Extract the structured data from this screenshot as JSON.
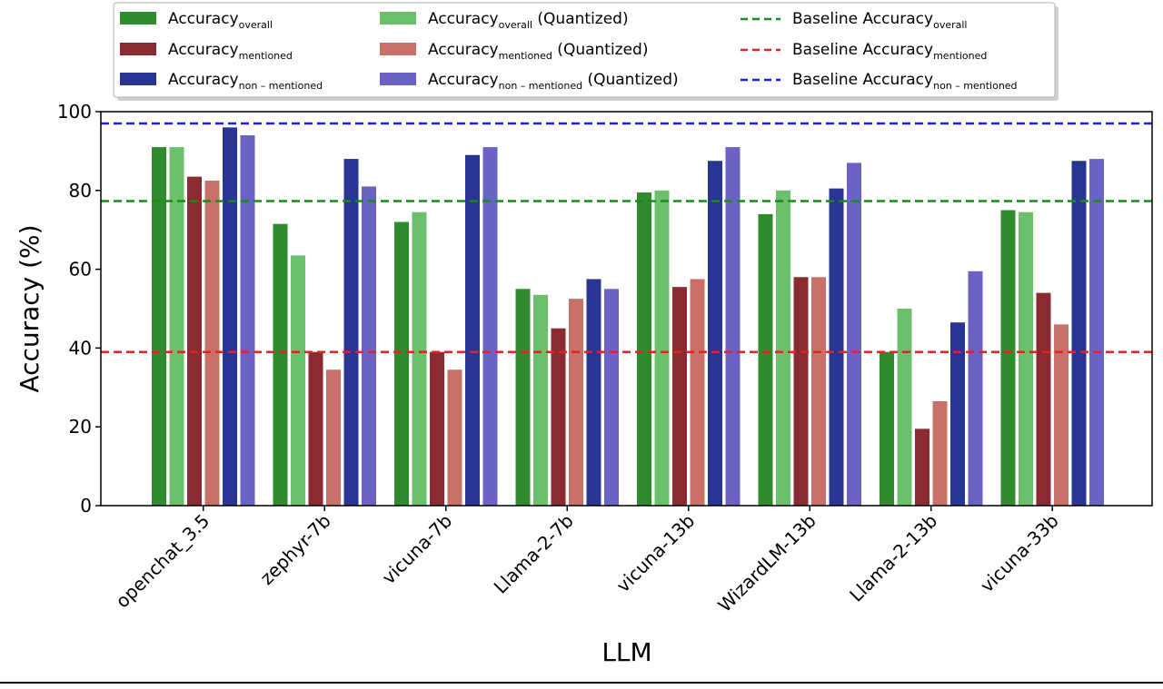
{
  "chart_data": {
    "type": "bar",
    "xlabel": "LLM",
    "ylabel": "Accuracy (%)",
    "ylim": [
      0,
      100
    ],
    "yticks": [
      0,
      20,
      40,
      60,
      80,
      100
    ],
    "grid": false,
    "legend_placement": "top",
    "categories": [
      "openchat_3.5",
      "zephyr-7b",
      "vicuna-7b",
      "Llama-2-7b",
      "vicuna-13b",
      "WizardLM-13b",
      "Llama-2-13b",
      "vicuna-33b"
    ],
    "series": [
      {
        "name": "Accuracy",
        "subscript": "overall",
        "suffix": "",
        "color": "#2e8b2e",
        "values": [
          91.0,
          71.5,
          72.0,
          55.0,
          79.5,
          74.0,
          39.0,
          75.0
        ]
      },
      {
        "name": "Accuracy",
        "subscript": "overall",
        "suffix": " (Quantized)",
        "color": "#6cc06c",
        "values": [
          91.0,
          63.5,
          74.5,
          53.5,
          80.0,
          80.0,
          50.0,
          74.5
        ]
      },
      {
        "name": "Accuracy",
        "subscript": "mentioned",
        "suffix": "",
        "color": "#8b2a30",
        "values": [
          83.5,
          39.0,
          39.0,
          45.0,
          55.5,
          58.0,
          19.5,
          54.0
        ]
      },
      {
        "name": "Accuracy",
        "subscript": "mentioned",
        "suffix": " (Quantized)",
        "color": "#c97068",
        "values": [
          82.5,
          34.5,
          34.5,
          52.5,
          57.5,
          58.0,
          26.5,
          46.0
        ]
      },
      {
        "name": "Accuracy",
        "subscript": "non – mentioned",
        "suffix": "",
        "color": "#283593",
        "values": [
          96.0,
          88.0,
          89.0,
          57.5,
          87.5,
          80.5,
          46.5,
          87.5
        ]
      },
      {
        "name": "Accuracy",
        "subscript": "non – mentioned",
        "suffix": " (Quantized)",
        "color": "#6b62c5",
        "values": [
          94.0,
          81.0,
          91.0,
          55.0,
          91.0,
          87.0,
          59.5,
          88.0
        ]
      }
    ],
    "baselines": [
      {
        "name": "Baseline Accuracy",
        "subscript": "overall",
        "value": 77.3,
        "color": "#1a8a1a"
      },
      {
        "name": "Baseline Accuracy",
        "subscript": "mentioned",
        "value": 39.0,
        "color": "#e52222"
      },
      {
        "name": "Baseline Accuracy",
        "subscript": "non – mentioned",
        "value": 97.0,
        "color": "#1f1fe0"
      }
    ]
  }
}
